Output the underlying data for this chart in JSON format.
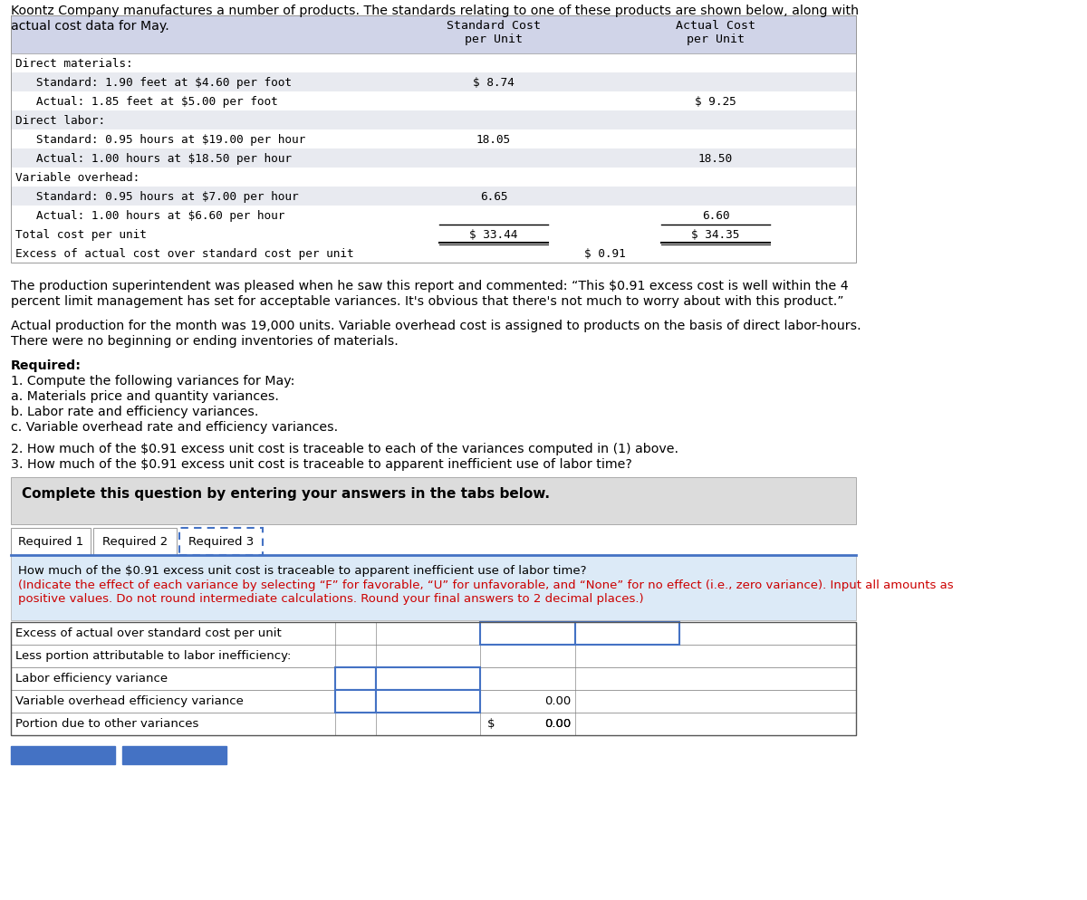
{
  "intro_text_line1": "Koontz Company manufactures a number of products. The standards relating to one of these products are shown below, along with",
  "intro_text_line2": "actual cost data for May.",
  "table_header_std": "Standard Cost\nper Unit",
  "table_header_act": "Actual Cost\nper Unit",
  "table_rows": [
    {
      "label": "Direct materials:",
      "indent": 0,
      "std": "",
      "act": "",
      "bold": false
    },
    {
      "label": "   Standard: 1.90 feet at $4.60 per foot",
      "indent": 0,
      "std": "$ 8.74",
      "act": "",
      "bold": false
    },
    {
      "label": "   Actual: 1.85 feet at $5.00 per foot",
      "indent": 0,
      "std": "",
      "act": "$ 9.25",
      "bold": false
    },
    {
      "label": "Direct labor:",
      "indent": 0,
      "std": "",
      "act": "",
      "bold": false
    },
    {
      "label": "   Standard: 0.95 hours at $19.00 per hour",
      "indent": 0,
      "std": "18.05",
      "act": "",
      "bold": false
    },
    {
      "label": "   Actual: 1.00 hours at $18.50 per hour",
      "indent": 0,
      "std": "",
      "act": "18.50",
      "bold": false
    },
    {
      "label": "Variable overhead:",
      "indent": 0,
      "std": "",
      "act": "",
      "bold": false
    },
    {
      "label": "   Standard: 0.95 hours at $7.00 per hour",
      "indent": 0,
      "std": "6.65",
      "act": "",
      "bold": false
    },
    {
      "label": "   Actual: 1.00 hours at $6.60 per hour",
      "indent": 0,
      "std": "",
      "act": "6.60",
      "bold": false
    }
  ],
  "total_label": "Total cost per unit",
  "total_std": "$ 33.44",
  "total_act": "$ 34.35",
  "excess_label": "Excess of actual cost over standard cost per unit",
  "excess_value": "$ 0.91",
  "para1": "The production superintendent was pleased when he saw this report and commented: “This $0.91 excess cost is well within the 4",
  "para1b": "percent limit management has set for acceptable variances. It's obvious that there's not much to worry about with this product.”",
  "para2": "Actual production for the month was 19,000 units. Variable overhead cost is assigned to products on the basis of direct labor-hours.",
  "para2b": "There were no beginning or ending inventories of materials.",
  "required_bold": "Required:",
  "req_items": [
    "1. Compute the following variances for May:",
    "a. Materials price and quantity variances.",
    "b. Labor rate and efficiency variances.",
    "c. Variable overhead rate and efficiency variances."
  ],
  "req2": "2. How much of the $0.91 excess unit cost is traceable to each of the variances computed in (1) above.",
  "req3": "3. How much of the $0.91 excess unit cost is traceable to apparent inefficient use of labor time?",
  "complete_text": "Complete this question by entering your answers in the tabs below.",
  "tabs": [
    "Required 1",
    "Required 2",
    "Required 3"
  ],
  "active_tab_idx": 2,
  "instr_black": "How much of the $0.91 excess unit cost is traceable to apparent inefficient use of labor time?",
  "instr_red": "(Indicate the effect of each variance by selecting “F” for favorable, “U” for unfavorable, and “None” for no effect (i.e., zero variance). Input all amounts as positive values. Do not round intermediate calculations. Round your final answers to 2 decimal places.)",
  "btable_rows": [
    {
      "label": "Excess of actual over standard cost per unit",
      "has_blue_col3": true,
      "has_blue_col1": false,
      "val_col3": "",
      "val_col4": ""
    },
    {
      "label": "Less portion attributable to labor inefficiency:",
      "has_blue_col3": false,
      "has_blue_col1": false,
      "val_col3": "",
      "val_col4": ""
    },
    {
      "label": "Labor efficiency variance",
      "has_blue_col3": false,
      "has_blue_col1": true,
      "val_col3": "",
      "val_col4": ""
    },
    {
      "label": "Variable overhead efficiency variance",
      "has_blue_col3": false,
      "has_blue_col1": true,
      "val_col3": "0.00",
      "val_col4": ""
    },
    {
      "label": "Portion due to other variances",
      "has_blue_col3": false,
      "has_blue_col1": false,
      "val_col3": "0.00",
      "val_col4": "",
      "dollar_sign": true
    }
  ],
  "bg": "#ffffff",
  "hdr_bg": "#d0d4e8",
  "alt_bg": "#e8eaf0",
  "gray_bg": "#dcdcdc",
  "blue_bg": "#dceaf7",
  "blue_border": "#4472c4",
  "tab_line_color": "#4472c4"
}
